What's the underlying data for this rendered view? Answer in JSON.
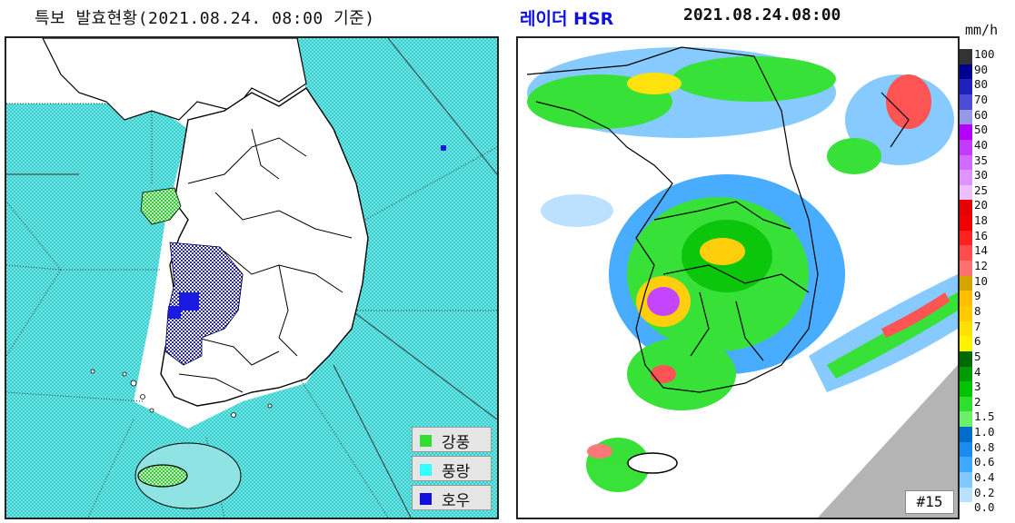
{
  "left_panel": {
    "title": "특보 발효현황(2021.08.24. 08:00 기준)",
    "legend": [
      {
        "label": "강풍",
        "color": "#33dd33",
        "icon": "strong-wind-swatch"
      },
      {
        "label": "풍랑",
        "color": "#33ffff",
        "icon": "high-seas-swatch"
      },
      {
        "label": "호우",
        "color": "#1111dd",
        "icon": "heavy-rain-swatch"
      }
    ],
    "colors": {
      "sea_warning": "#55dede",
      "land": "#ffffff",
      "heavy_rain": "#1a1ae0",
      "strong_wind": "#44d844"
    }
  },
  "right_panel": {
    "title_label": "레이더 HSR",
    "timestamp": "2021.08.24.08:00",
    "unit": "mm/h",
    "frame_badge": "#15",
    "scale": [
      {
        "label": "100",
        "color": "#333333"
      },
      {
        "label": "90",
        "color": "#000090"
      },
      {
        "label": "80",
        "color": "#2020c0"
      },
      {
        "label": "70",
        "color": "#4c4cd8"
      },
      {
        "label": "60",
        "color": "#9898e6"
      },
      {
        "label": "50",
        "color": "#b300ff"
      },
      {
        "label": "40",
        "color": "#c23cff"
      },
      {
        "label": "35",
        "color": "#d16bff"
      },
      {
        "label": "30",
        "color": "#de95ff"
      },
      {
        "label": "25",
        "color": "#eebfff"
      },
      {
        "label": "20",
        "color": "#e60000"
      },
      {
        "label": "18",
        "color": "#f00000"
      },
      {
        "label": "16",
        "color": "#ff2020"
      },
      {
        "label": "14",
        "color": "#ff4b4b"
      },
      {
        "label": "12",
        "color": "#ff7070"
      },
      {
        "label": "10",
        "color": "#d7a500"
      },
      {
        "label": "9",
        "color": "#ffbf00"
      },
      {
        "label": "8",
        "color": "#ffcc00"
      },
      {
        "label": "7",
        "color": "#ffe000"
      },
      {
        "label": "6",
        "color": "#fff200"
      },
      {
        "label": "5",
        "color": "#006a00"
      },
      {
        "label": "4",
        "color": "#009b00"
      },
      {
        "label": "3",
        "color": "#00c400"
      },
      {
        "label": "2",
        "color": "#2ee02e"
      },
      {
        "label": "1.5",
        "color": "#6bf06b"
      },
      {
        "label": "1.0",
        "color": "#006ccc"
      },
      {
        "label": "0.8",
        "color": "#1a8cf0"
      },
      {
        "label": "0.6",
        "color": "#40a9ff"
      },
      {
        "label": "0.4",
        "color": "#80c8ff"
      },
      {
        "label": "0.2",
        "color": "#b8e0ff"
      },
      {
        "label": "0.0",
        "color": "#ffffff"
      }
    ],
    "colors": {
      "no_data": "#b4b4b4"
    }
  }
}
